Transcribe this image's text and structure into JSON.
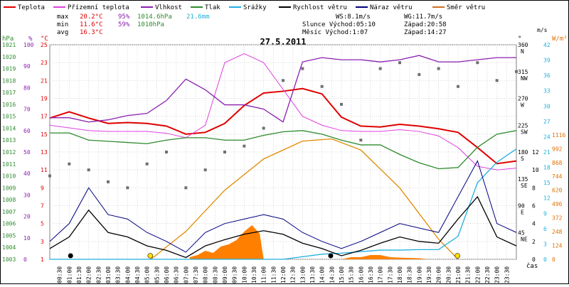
{
  "chart_data": {
    "type": "line",
    "title": "27.5.2011",
    "xlabel": "čas",
    "legend": [
      {
        "label": "Teplota",
        "color": "#e00000"
      },
      {
        "label": "Přízemní teplota",
        "color": "#e040e0"
      },
      {
        "label": "Vlhkost",
        "color": "#8a1fb0"
      },
      {
        "label": "Tlak",
        "color": "#2e8b2e"
      },
      {
        "label": "Srážky",
        "color": "#20b0e0"
      },
      {
        "label": "Rychlost větru",
        "color": "#000000"
      },
      {
        "label": "Náraz větru",
        "color": "#000080"
      },
      {
        "label": "Směr větru",
        "color": "#d07020"
      }
    ],
    "stats": {
      "max_label": "max",
      "min_label": "min",
      "avg_label": "avg",
      "max_temp": "20.2°C",
      "max_hum": "95%",
      "max_press": "1014.6hPa",
      "rain_total": "21.6mm",
      "min_temp": "11.6°C",
      "min_hum": "59%",
      "min_press": "1010hPa",
      "avg_temp": "16.3°C"
    },
    "info": {
      "ws": "WS:8.1m/s",
      "wg": "WG:11.7m/s",
      "sun_rise": "Slunce Východ:05:10",
      "sun_set": "Západ:20:58",
      "moon_rise": "Měsíc  Východ:1:07",
      "moon_set": "Západ:14:27"
    },
    "axes_left": {
      "hpa_unit": "hPa",
      "pct_unit": "%",
      "c_unit": "°C",
      "hpa": [
        1021,
        1020,
        1019,
        1018,
        1017,
        1016,
        1015,
        1014,
        1013,
        1012,
        1011,
        1010,
        1009,
        1008,
        1007,
        1006,
        1005,
        1004,
        1003
      ],
      "pct": [
        100,
        90,
        80,
        70,
        60,
        50,
        40,
        30,
        20,
        10,
        0
      ],
      "c": [
        25,
        23,
        21,
        19,
        17,
        15,
        13,
        11,
        9,
        7,
        5,
        3,
        1
      ]
    },
    "axes_right": {
      "deg_unit": "°",
      "ms_unit": "m/s",
      "wm_unit": "W/m²",
      "dir": [
        {
          "deg": "360",
          "cardinal": "N"
        },
        {
          "deg": "315",
          "cardinal": "NW"
        },
        {
          "deg": "270",
          "cardinal": "W"
        },
        {
          "deg": "225",
          "cardinal": "SW"
        },
        {
          "deg": "180",
          "cardinal": "S"
        },
        {
          "deg": "135",
          "cardinal": "SE"
        },
        {
          "deg": "90",
          "cardinal": "E"
        },
        {
          "deg": "45",
          "cardinal": "NE"
        }
      ],
      "ms": [
        12,
        10,
        8,
        6,
        4,
        2,
        0
      ],
      "mm": [
        42,
        39,
        36,
        33,
        30,
        27,
        24,
        21,
        18,
        15,
        12,
        9,
        6,
        3,
        0
      ],
      "wm": [
        1116,
        992,
        868,
        744,
        620,
        496,
        372,
        248,
        124,
        0
      ]
    },
    "x_ticks": [
      "00:30",
      "01:00",
      "01:30",
      "02:00",
      "02:30",
      "03:00",
      "03:30",
      "04:00",
      "04:30",
      "05:00",
      "05:30",
      "06:00",
      "06:30",
      "07:00",
      "07:30",
      "08:00",
      "08:30",
      "09:00",
      "09:30",
      "10:00",
      "10:30",
      "11:00",
      "11:30",
      "12:00",
      "12:30",
      "13:00",
      "13:30",
      "14:00",
      "14:30",
      "15:00",
      "15:30",
      "16:00",
      "16:30",
      "17:00",
      "17:30",
      "18:00",
      "18:30",
      "19:00",
      "19:30",
      "20:00",
      "20:30",
      "21:00",
      "21:30",
      "22:00",
      "22:30",
      "23:00",
      "23:30"
    ],
    "series": [
      {
        "name": "Teplota",
        "unit": "°C",
        "x": [
          0,
          1,
          2,
          3,
          4,
          5,
          6,
          7,
          8,
          9,
          10,
          11,
          12,
          13,
          14,
          15,
          16,
          17,
          18,
          19,
          20,
          21,
          22,
          23,
          24
        ],
        "values": [
          16.8,
          17.5,
          16.8,
          16.2,
          16.3,
          16.2,
          15.9,
          15.0,
          15.2,
          16.2,
          18.2,
          19.6,
          19.8,
          20.1,
          19.5,
          16.9,
          15.9,
          15.8,
          16.1,
          15.9,
          15.6,
          15.2,
          13.5,
          11.7,
          12.0
        ]
      },
      {
        "name": "Přízemní teplota",
        "unit": "°C",
        "x": [
          0,
          1,
          2,
          3,
          4,
          5,
          6,
          7,
          8,
          9,
          10,
          11,
          12,
          13,
          14,
          15,
          16,
          17,
          18,
          19,
          20,
          21,
          22,
          23,
          24
        ],
        "values": [
          16.0,
          15.7,
          15.4,
          15.3,
          15.3,
          15.3,
          15.1,
          14.6,
          16.0,
          23.0,
          24.0,
          23.0,
          20.0,
          17.0,
          16.0,
          15.4,
          15.3,
          15.3,
          15.5,
          15.3,
          14.8,
          13.5,
          11.4,
          11.0,
          11.2
        ]
      },
      {
        "name": "Vlhkost",
        "unit": "%",
        "x": [
          0,
          1,
          2,
          3,
          4,
          5,
          6,
          7,
          8,
          9,
          10,
          11,
          12,
          13,
          14,
          15,
          16,
          17,
          18,
          19,
          20,
          21,
          22,
          23,
          24
        ],
        "values": [
          66,
          66,
          64,
          65,
          67,
          68,
          74,
          84,
          79,
          72,
          72,
          70,
          64,
          92,
          94,
          93,
          93,
          92,
          93,
          95,
          92,
          92,
          93,
          94,
          94
        ]
      },
      {
        "name": "Tlak",
        "unit": "hPa",
        "x": [
          0,
          1,
          2,
          3,
          4,
          5,
          6,
          7,
          8,
          9,
          10,
          11,
          12,
          13,
          14,
          15,
          16,
          17,
          18,
          19,
          20,
          21,
          22,
          23,
          24
        ],
        "values": [
          1013.6,
          1013.6,
          1013.0,
          1012.9,
          1012.8,
          1012.7,
          1013.0,
          1013.2,
          1013.2,
          1013.0,
          1013.0,
          1013.4,
          1013.7,
          1013.8,
          1013.5,
          1013.0,
          1012.6,
          1012.6,
          1011.8,
          1011.1,
          1010.6,
          1010.7,
          1012.4,
          1013.5,
          1013.8
        ]
      },
      {
        "name": "Srážky",
        "unit": "mm",
        "x": [
          0,
          1,
          2,
          3,
          4,
          5,
          6,
          7,
          8,
          9,
          10,
          11,
          12,
          13,
          14,
          15,
          16,
          17,
          18,
          19,
          20,
          21,
          22,
          23,
          24
        ],
        "values": [
          0,
          0,
          0,
          0,
          0,
          0,
          0,
          0,
          0,
          0,
          0,
          0,
          0,
          0.5,
          1.0,
          1.2,
          1.5,
          1.8,
          1.8,
          1.9,
          1.9,
          4.5,
          15,
          19,
          21.6
        ]
      },
      {
        "name": "Rychlost větru",
        "unit": "m/s",
        "x": [
          0,
          1,
          2,
          3,
          4,
          5,
          6,
          7,
          8,
          9,
          10,
          11,
          12,
          13,
          14,
          15,
          16,
          17,
          18,
          19,
          20,
          21,
          22,
          23,
          24
        ],
        "values": [
          1.2,
          2.5,
          5.5,
          3.0,
          2.5,
          1.5,
          1.0,
          0.2,
          1.5,
          2.2,
          2.8,
          3.2,
          2.8,
          1.8,
          1.2,
          0.4,
          1.0,
          1.8,
          2.5,
          2.0,
          1.8,
          4.5,
          7.0,
          2.5,
          1.5
        ]
      },
      {
        "name": "Náraz větru",
        "unit": "m/s",
        "x": [
          0,
          1,
          2,
          3,
          4,
          5,
          6,
          7,
          8,
          9,
          10,
          11,
          12,
          13,
          14,
          15,
          16,
          17,
          18,
          19,
          20,
          21,
          22,
          23,
          24
        ],
        "values": [
          2.0,
          4.0,
          8.0,
          5.0,
          4.5,
          3.0,
          2.0,
          0.8,
          3.0,
          4.0,
          4.5,
          5.0,
          4.5,
          3.0,
          2.0,
          1.2,
          2.0,
          3.0,
          4.0,
          3.5,
          3.0,
          7.0,
          11.0,
          4.0,
          3.0
        ]
      },
      {
        "name": "Směr větru",
        "unit": "°",
        "x": [
          0,
          1,
          2,
          3,
          4,
          5,
          6,
          7,
          8,
          9,
          10,
          11,
          12,
          13,
          14,
          15,
          16,
          17,
          18,
          19,
          20,
          21,
          22,
          23,
          24
        ],
        "values": [
          140,
          160,
          150,
          130,
          120,
          160,
          180,
          120,
          150,
          180,
          190,
          220,
          300,
          320,
          290,
          260,
          200,
          320,
          330,
          310,
          320,
          290,
          330,
          300,
          315
        ]
      },
      {
        "name": "Sluneční záření",
        "unit": "W/m²",
        "x": [
          5.2,
          7,
          9,
          11,
          13,
          14.5,
          16,
          18,
          20,
          21
        ],
        "values": [
          0,
          250,
          620,
          900,
          1060,
          1080,
          980,
          640,
          180,
          0
        ]
      },
      {
        "name": "Srážky intenzita",
        "unit": "mm",
        "x": [
          7.2,
          7.6,
          8.0,
          8.4,
          8.8,
          9.2,
          9.6,
          10.0,
          10.4,
          10.8,
          11.0,
          15.0,
          15.5,
          16.0,
          16.5,
          17.0,
          17.5,
          18.0,
          19.0,
          19.5
        ],
        "values": [
          1,
          2,
          4,
          3,
          6,
          7,
          9,
          13,
          16,
          12,
          0,
          0,
          1,
          1,
          2,
          2,
          1,
          0.8,
          0.5,
          0
        ]
      }
    ]
  }
}
